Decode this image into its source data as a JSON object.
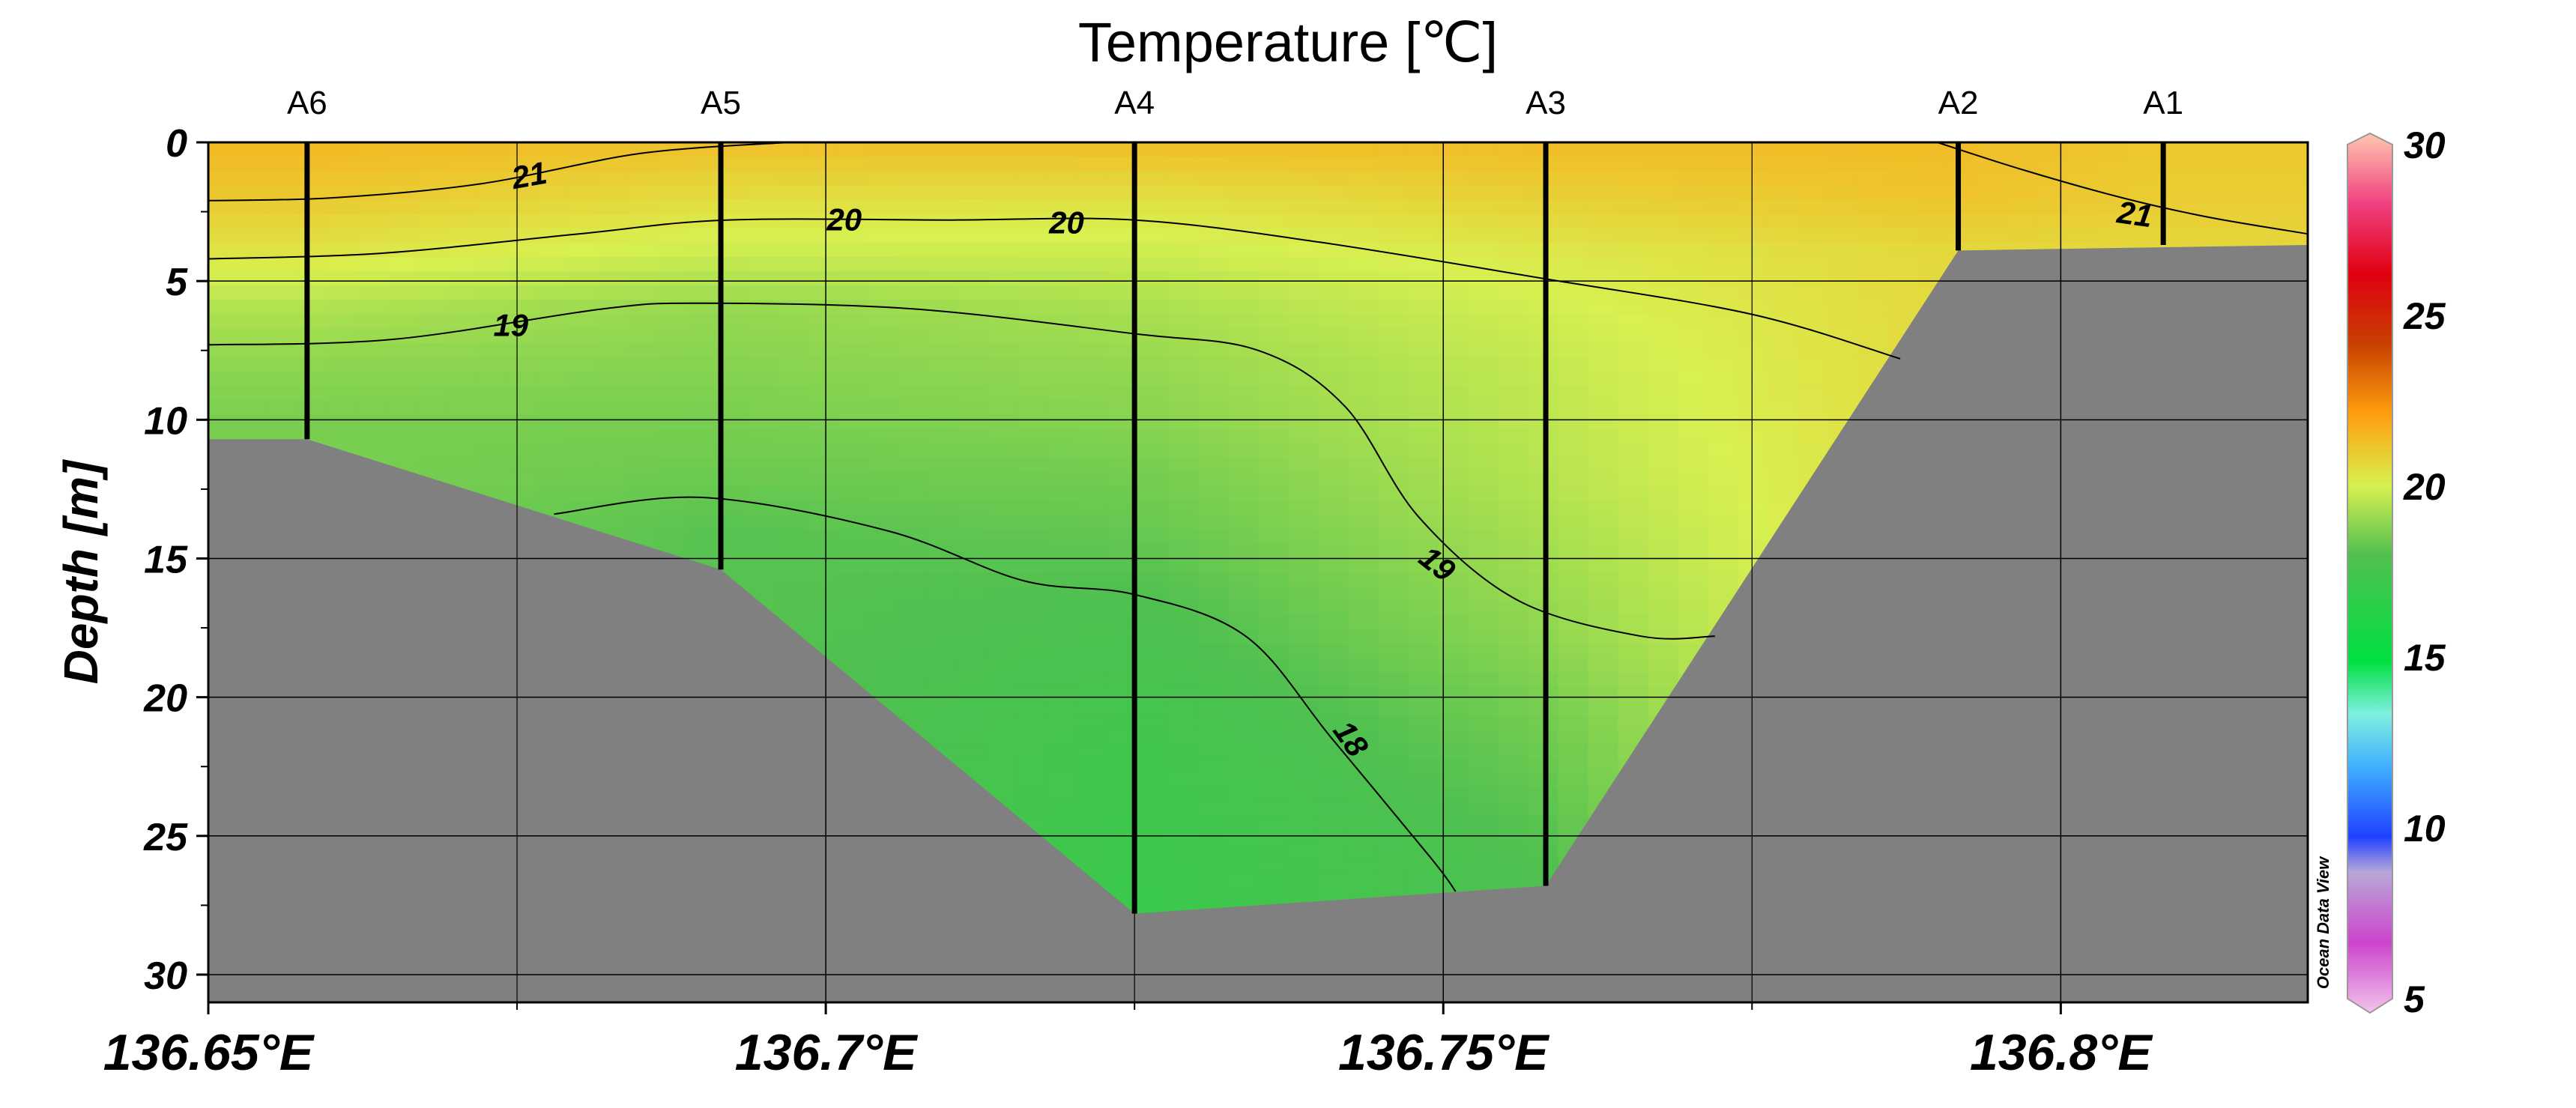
{
  "chart_data": {
    "type": "contour-section",
    "title": "Temperature [℃]",
    "ylabel": "Depth [m]",
    "xlabel": "",
    "xlim": [
      136.65,
      136.82
    ],
    "ylim": [
      0,
      31
    ],
    "y_inverted": true,
    "grid": true,
    "x_ticks": [
      {
        "value": 136.65,
        "label": "136.65°E"
      },
      {
        "value": 136.7,
        "label": "136.7°E"
      },
      {
        "value": 136.75,
        "label": "136.75°E"
      },
      {
        "value": 136.8,
        "label": "136.8°E"
      }
    ],
    "y_ticks": [
      {
        "value": 0,
        "label": "0"
      },
      {
        "value": 5,
        "label": "5"
      },
      {
        "value": 10,
        "label": "10"
      },
      {
        "value": 15,
        "label": "15"
      },
      {
        "value": 20,
        "label": "20"
      },
      {
        "value": 25,
        "label": "25"
      },
      {
        "value": 30,
        "label": "30"
      }
    ],
    "stations": [
      {
        "name": "A6",
        "lon": 136.658,
        "max_depth": 10.7
      },
      {
        "name": "A5",
        "lon": 136.6915,
        "max_depth": 15.4
      },
      {
        "name": "A4",
        "lon": 136.725,
        "max_depth": 27.8
      },
      {
        "name": "A3",
        "lon": 136.7583,
        "max_depth": 26.8
      },
      {
        "name": "A2",
        "lon": 136.7917,
        "max_depth": 3.9
      },
      {
        "name": "A1",
        "lon": 136.8083,
        "max_depth": 3.7
      }
    ],
    "bathymetry": [
      [
        136.65,
        10.7
      ],
      [
        136.658,
        10.7
      ],
      [
        136.6915,
        15.4
      ],
      [
        136.725,
        27.8
      ],
      [
        136.7583,
        26.8
      ],
      [
        136.7917,
        3.9
      ],
      [
        136.82,
        3.7
      ]
    ],
    "temperature_field": {
      "depths": [
        0,
        2,
        4,
        6,
        8,
        10,
        12,
        14,
        16,
        18,
        20,
        22,
        24,
        26,
        28
      ],
      "stations": [
        {
          "lon": 136.658,
          "values": [
            21.4,
            21.0,
            20.3,
            19.4,
            18.9,
            18.6,
            null,
            null,
            null,
            null,
            null,
            null,
            null,
            null,
            null
          ]
        },
        {
          "lon": 136.6915,
          "values": [
            21.2,
            20.5,
            19.8,
            19.0,
            18.8,
            18.6,
            18.4,
            18.1,
            null,
            null,
            null,
            null,
            null,
            null,
            null
          ]
        },
        {
          "lon": 136.725,
          "values": [
            21.3,
            20.4,
            19.8,
            19.3,
            19.0,
            18.8,
            18.5,
            18.3,
            18.0,
            17.8,
            17.6,
            17.4,
            17.3,
            17.2,
            17.1
          ]
        },
        {
          "lon": 136.7583,
          "values": [
            21.3,
            20.8,
            20.2,
            19.9,
            19.7,
            19.6,
            19.5,
            19.3,
            19.1,
            18.9,
            18.6,
            18.4,
            18.2,
            18.0,
            null
          ]
        },
        {
          "lon": 136.7917,
          "values": [
            21.3,
            21.1,
            20.6,
            null,
            null,
            null,
            null,
            null,
            null,
            null,
            null,
            null,
            null,
            null,
            null
          ]
        },
        {
          "lon": 136.8083,
          "values": [
            21.0,
            20.9,
            20.6,
            null,
            null,
            null,
            null,
            null,
            null,
            null,
            null,
            null,
            null,
            null,
            null
          ]
        }
      ]
    },
    "contours": [
      {
        "level": "21",
        "points": [
          [
            136.65,
            2.1
          ],
          [
            136.66,
            2.0
          ],
          [
            136.672,
            1.5
          ],
          [
            136.685,
            0.4
          ],
          [
            136.697,
            0.0
          ]
        ],
        "label_at": [
          136.676,
          1.2
        ]
      },
      {
        "level": "21",
        "points": [
          [
            136.79,
            0.0
          ],
          [
            136.797,
            1.0
          ],
          [
            136.805,
            2.0
          ],
          [
            136.812,
            2.7
          ],
          [
            136.82,
            3.3
          ]
        ],
        "label_at": [
          136.806,
          2.6
        ]
      },
      {
        "level": "20",
        "points": [
          [
            136.65,
            4.2
          ],
          [
            136.664,
            4.0
          ],
          [
            136.68,
            3.3
          ],
          [
            136.692,
            2.8
          ],
          [
            136.71,
            2.8
          ],
          [
            136.725,
            2.8
          ],
          [
            136.74,
            3.6
          ],
          [
            136.758,
            4.9
          ],
          [
            136.775,
            6.2
          ],
          [
            136.787,
            7.8
          ]
        ],
        "label_at": [
          136.7015,
          2.8
        ]
      },
      {
        "level": "20",
        "points": [],
        "label_at": [
          136.7195,
          2.9
        ]
      },
      {
        "level": "19",
        "points": [
          [
            136.65,
            7.3
          ],
          [
            136.665,
            7.1
          ],
          [
            136.682,
            6.0
          ],
          [
            136.69,
            5.8
          ],
          [
            136.707,
            6.0
          ],
          [
            136.725,
            6.9
          ],
          [
            136.735,
            7.5
          ],
          [
            136.742,
            9.5
          ],
          [
            136.748,
            13.5
          ],
          [
            136.756,
            16.5
          ],
          [
            136.766,
            17.8
          ],
          [
            136.772,
            17.8
          ]
        ],
        "label_at": [
          136.7495,
          15.2
        ]
      },
      {
        "level": "19",
        "points": [],
        "label_at": [
          136.6745,
          6.6
        ]
      },
      {
        "level": "18",
        "points": [
          [
            136.678,
            13.4
          ],
          [
            136.69,
            12.8
          ],
          [
            136.705,
            14.0
          ],
          [
            136.716,
            15.8
          ],
          [
            136.725,
            16.3
          ],
          [
            136.734,
            17.8
          ],
          [
            136.741,
            21.5
          ],
          [
            136.749,
            25.8
          ],
          [
            136.751,
            27.0
          ]
        ],
        "label_at": [
          136.7425,
          21.5
        ]
      }
    ],
    "colorbar": {
      "min": 5,
      "max": 30,
      "ticks": [
        {
          "value": 30,
          "label": "30"
        },
        {
          "value": 25,
          "label": "25"
        },
        {
          "value": 20,
          "label": "20"
        },
        {
          "value": 15,
          "label": "15"
        },
        {
          "value": 10,
          "label": "10"
        },
        {
          "value": 5,
          "label": "5"
        }
      ],
      "stops": [
        {
          "value": 5,
          "color": "#f2c4ec"
        },
        {
          "value": 7,
          "color": "#cc44cc"
        },
        {
          "value": 9,
          "color": "#b8a8d8"
        },
        {
          "value": 10,
          "color": "#2040ff"
        },
        {
          "value": 12,
          "color": "#40b0ff"
        },
        {
          "value": 13.5,
          "color": "#80f0e0"
        },
        {
          "value": 15,
          "color": "#00e040"
        },
        {
          "value": 18,
          "color": "#50c050"
        },
        {
          "value": 20,
          "color": "#d8f050"
        },
        {
          "value": 22,
          "color": "#ffa010"
        },
        {
          "value": 24,
          "color": "#c84000"
        },
        {
          "value": 26,
          "color": "#e00010"
        },
        {
          "value": 28,
          "color": "#f04080"
        },
        {
          "value": 30,
          "color": "#ffc8b0"
        }
      ]
    },
    "colors": {
      "land": "#808080",
      "station_line": "#000000",
      "contour_line": "#000000",
      "grid": "#000000"
    }
  },
  "credit": "Ocean Data View"
}
